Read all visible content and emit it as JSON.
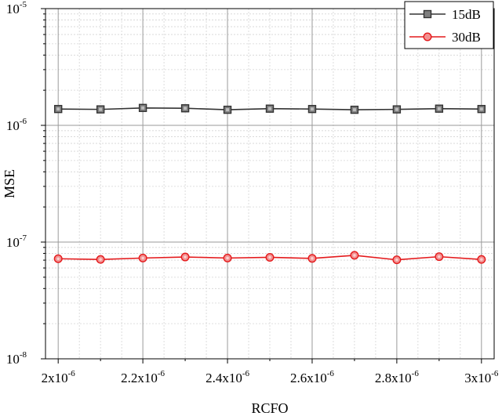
{
  "chart_data": {
    "type": "line",
    "title": "",
    "xlabel": "RCFO",
    "ylabel": "MSE",
    "x": [
      2e-06,
      2.1e-06,
      2.2e-06,
      2.3e-06,
      2.4e-06,
      2.5e-06,
      2.6e-06,
      2.7e-06,
      2.8e-06,
      2.9e-06,
      3e-06
    ],
    "xlim": [
      1.97e-06,
      3.03e-06
    ],
    "ylim": [
      1e-08,
      1e-05
    ],
    "yscale": "log",
    "grid": true,
    "legend_position": "top-right",
    "x_ticks": [
      {
        "value": 2e-06,
        "mantissa": "2x10",
        "exp": "-6"
      },
      {
        "value": 2.2e-06,
        "mantissa": "2.2x10",
        "exp": "-6"
      },
      {
        "value": 2.4e-06,
        "mantissa": "2.4x10",
        "exp": "-6"
      },
      {
        "value": 2.6e-06,
        "mantissa": "2.6x10",
        "exp": "-6"
      },
      {
        "value": 2.8e-06,
        "mantissa": "2.8x10",
        "exp": "-6"
      },
      {
        "value": 3e-06,
        "mantissa": "3x10",
        "exp": "-6"
      }
    ],
    "y_ticks": [
      {
        "value": 1e-08,
        "mantissa": "10",
        "exp": "-8"
      },
      {
        "value": 1e-07,
        "mantissa": "10",
        "exp": "-7"
      },
      {
        "value": 1e-06,
        "mantissa": "10",
        "exp": "-6"
      },
      {
        "value": 1e-05,
        "mantissa": "10",
        "exp": "-5"
      }
    ],
    "series": [
      {
        "name": "15dB",
        "color": "#333333",
        "marker": "square",
        "values": [
          1.38e-06,
          1.37e-06,
          1.41e-06,
          1.4e-06,
          1.36e-06,
          1.39e-06,
          1.38e-06,
          1.36e-06,
          1.37e-06,
          1.39e-06,
          1.38e-06
        ]
      },
      {
        "name": "30dB",
        "color": "#e41a1c",
        "marker": "circle",
        "values": [
          7.2e-08,
          7.1e-08,
          7.3e-08,
          7.45e-08,
          7.3e-08,
          7.4e-08,
          7.25e-08,
          7.7e-08,
          7.05e-08,
          7.5e-08,
          7.1e-08
        ]
      }
    ]
  }
}
